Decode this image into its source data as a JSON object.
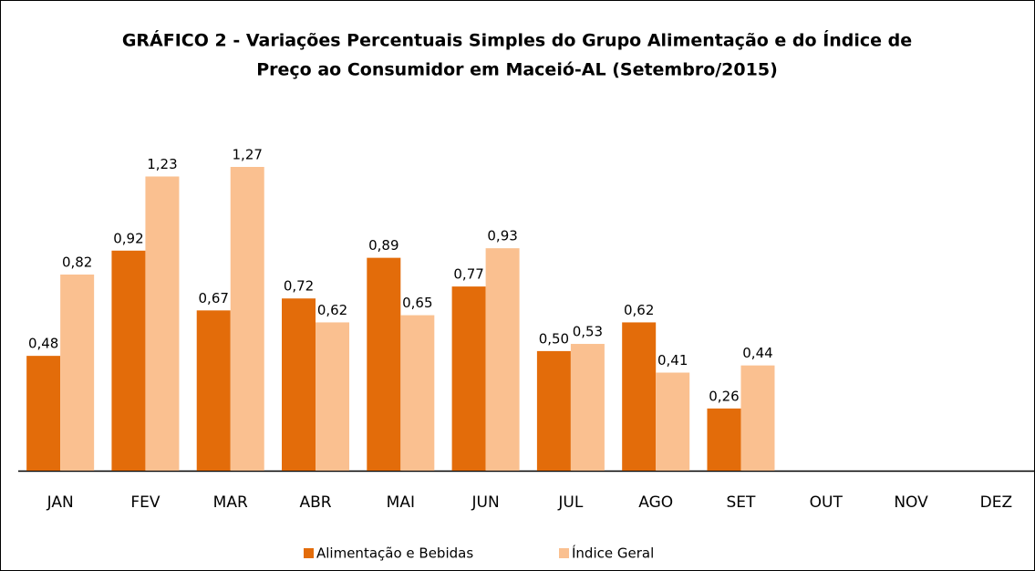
{
  "chart_data": {
    "type": "bar",
    "title": [
      "GRÁFICO 2 - Variações Percentuais Simples do Grupo Alimentação e do Índice de",
      "Preço ao Consumidor em Maceió-AL (Setembro/2015)"
    ],
    "categories": [
      "JAN",
      "FEV",
      "MAR",
      "ABR",
      "MAI",
      "JUN",
      "JUL",
      "AGO",
      "SET",
      "OUT",
      "NOV",
      "DEZ"
    ],
    "series": [
      {
        "name": "Alimentação e Bebidas",
        "color": "#e36c0a",
        "values": [
          0.48,
          0.92,
          0.67,
          0.72,
          0.89,
          0.77,
          0.5,
          0.62,
          0.26,
          null,
          null,
          null
        ],
        "value_labels": [
          "0,48",
          "0,92",
          "0,67",
          "0,72",
          "0,89",
          "0,77",
          "0,50",
          "0,62",
          "0,26",
          null,
          null,
          null
        ]
      },
      {
        "name": "Índice Geral",
        "color": "#fac090",
        "values": [
          0.82,
          1.23,
          1.27,
          0.62,
          0.65,
          0.93,
          0.53,
          0.41,
          0.44,
          null,
          null,
          null
        ],
        "value_labels": [
          "0,82",
          "1,23",
          "1,27",
          "0,62",
          "0,65",
          "0,93",
          "0,53",
          "0,41",
          "0,44",
          null,
          null,
          null
        ]
      }
    ]
  }
}
